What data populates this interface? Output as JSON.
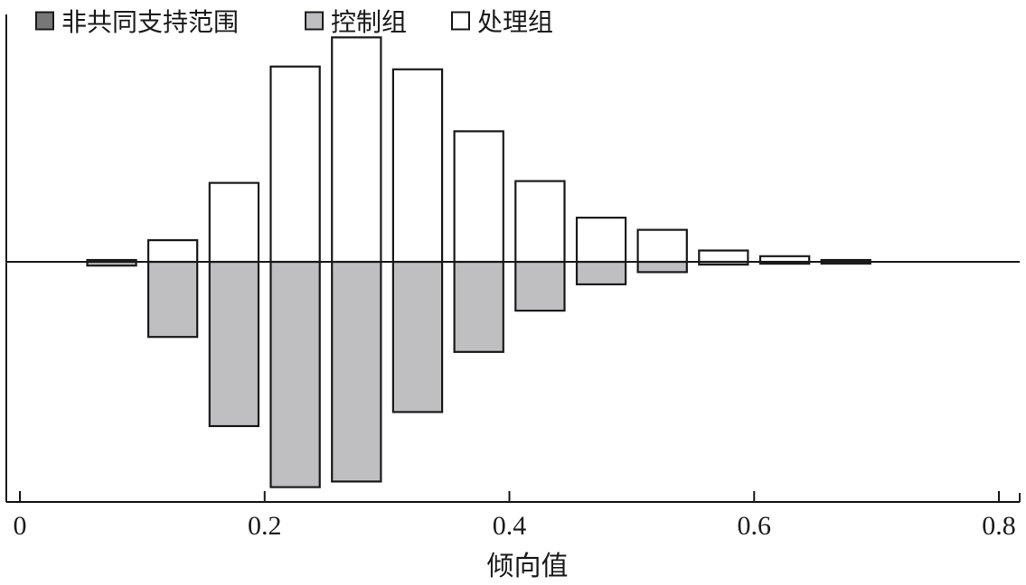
{
  "chart_data": {
    "type": "bar",
    "subtype": "mirrored-histogram",
    "title": "",
    "xlabel": "倾向值",
    "ylabel": "",
    "xlim": [
      0,
      0.8
    ],
    "x_ticks": [
      0,
      0.2,
      0.4,
      0.6,
      0.8
    ],
    "x_tick_labels": [
      "0",
      "0.2",
      "0.4",
      "0.6",
      "0.8"
    ],
    "ylim": [
      -0.24,
      0.24
    ],
    "bin_width": 0.04,
    "grid": false,
    "legend_position": "top-left",
    "series": [
      {
        "name": "非共同支持范围",
        "key": "off_support",
        "side": "below",
        "color": "#777777",
        "bins": []
      },
      {
        "name": "控制组",
        "key": "control",
        "side": "below",
        "color": "#bfbfc2",
        "bins": [
          {
            "x0": 0.055,
            "x1": 0.095,
            "value": 0.004
          },
          {
            "x0": 0.105,
            "x1": 0.145,
            "value": 0.08
          },
          {
            "x0": 0.155,
            "x1": 0.195,
            "value": 0.175
          },
          {
            "x0": 0.205,
            "x1": 0.245,
            "value": 0.24
          },
          {
            "x0": 0.255,
            "x1": 0.295,
            "value": 0.234
          },
          {
            "x0": 0.305,
            "x1": 0.345,
            "value": 0.16
          },
          {
            "x0": 0.355,
            "x1": 0.395,
            "value": 0.096
          },
          {
            "x0": 0.405,
            "x1": 0.445,
            "value": 0.052
          },
          {
            "x0": 0.455,
            "x1": 0.495,
            "value": 0.024
          },
          {
            "x0": 0.505,
            "x1": 0.545,
            "value": 0.011
          },
          {
            "x0": 0.555,
            "x1": 0.595,
            "value": 0.003
          },
          {
            "x0": 0.605,
            "x1": 0.645,
            "value": 0.002
          },
          {
            "x0": 0.655,
            "x1": 0.695,
            "value": 0.0003
          }
        ]
      },
      {
        "name": "处理组",
        "key": "treatment",
        "side": "above",
        "color": "#ffffff",
        "bins": [
          {
            "x0": 0.055,
            "x1": 0.095,
            "value": 0.001
          },
          {
            "x0": 0.105,
            "x1": 0.145,
            "value": 0.023
          },
          {
            "x0": 0.155,
            "x1": 0.195,
            "value": 0.084
          },
          {
            "x0": 0.205,
            "x1": 0.245,
            "value": 0.208
          },
          {
            "x0": 0.255,
            "x1": 0.295,
            "value": 0.239
          },
          {
            "x0": 0.305,
            "x1": 0.345,
            "value": 0.205
          },
          {
            "x0": 0.355,
            "x1": 0.395,
            "value": 0.139
          },
          {
            "x0": 0.405,
            "x1": 0.445,
            "value": 0.086
          },
          {
            "x0": 0.455,
            "x1": 0.495,
            "value": 0.047
          },
          {
            "x0": 0.505,
            "x1": 0.545,
            "value": 0.034
          },
          {
            "x0": 0.555,
            "x1": 0.595,
            "value": 0.012
          },
          {
            "x0": 0.605,
            "x1": 0.645,
            "value": 0.006
          },
          {
            "x0": 0.655,
            "x1": 0.695,
            "value": 0.0005
          }
        ]
      }
    ],
    "colors": {
      "axis": "#1a1a1a",
      "bar_stroke": "#1a1a1a"
    }
  }
}
